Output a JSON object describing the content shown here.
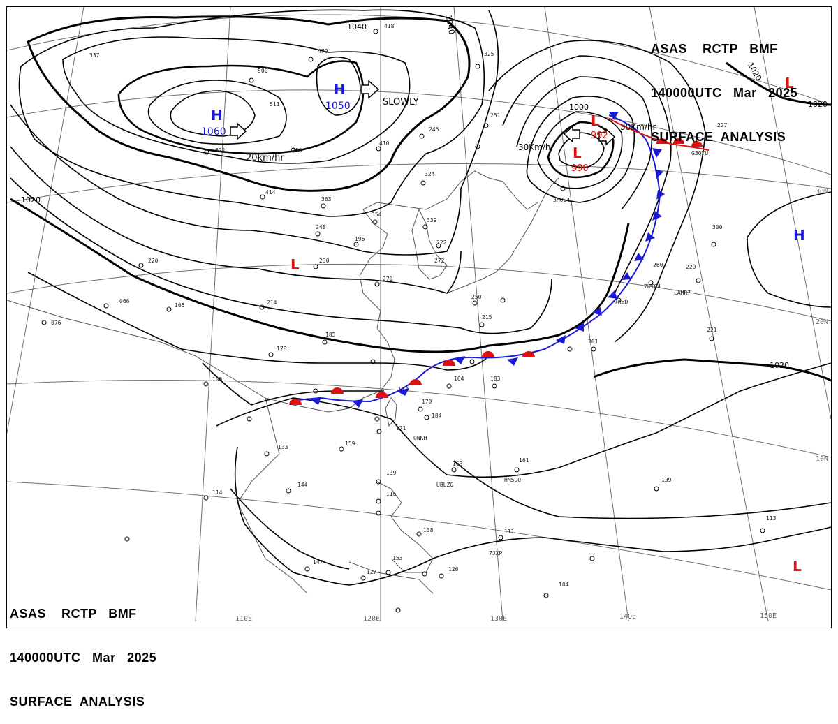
{
  "headers": {
    "top": {
      "line1": "ASAS    RCTP   BMF",
      "line2": "140000UTC   Mar   2025",
      "line3": "SURFACE  ANALYSIS"
    },
    "bottom": {
      "line1": "ASAS    RCTP   BMF",
      "line2": "140000UTC   Mar   2025",
      "line3": "SURFACE  ANALYSIS"
    }
  },
  "colors": {
    "high": "#1a1ad6",
    "low": "#e01010",
    "coast": "#555555",
    "grid": "#6e6e6e",
    "isobar": "#000000"
  },
  "pressure_centers": [
    {
      "kind": "H",
      "value": "1060",
      "motion": "20km/hr"
    },
    {
      "kind": "H",
      "value": "1050",
      "motion": "SLOWLY"
    },
    {
      "kind": "L",
      "value": "990",
      "motion": "30Km/hr"
    },
    {
      "kind": "L",
      "value": "992",
      "motion": "30Km/hr"
    },
    {
      "kind": "L",
      "value": ""
    },
    {
      "kind": "L",
      "value": ""
    },
    {
      "kind": "L",
      "value": ""
    },
    {
      "kind": "H",
      "value": ""
    }
  ],
  "isobar_labels": [
    "1040",
    "1040",
    "1020",
    "1020",
    "1020",
    "1000",
    "1020"
  ],
  "longitude_labels": [
    "110E",
    "120E",
    "130E",
    "140E",
    "150E"
  ],
  "latitude_labels": [
    "30N",
    "20N",
    "10N"
  ],
  "station_labels": [
    "418",
    "479",
    "500",
    "337",
    "511",
    "622",
    "456",
    "410",
    "325",
    "251",
    "245",
    "324",
    "414",
    "363",
    "354",
    "339",
    "248",
    "195",
    "222",
    "272",
    "220",
    "230",
    "270",
    "066",
    "105",
    "214",
    "250",
    "215",
    "185",
    "178",
    "105",
    "172",
    "164",
    "183",
    "201",
    "170",
    "184",
    "171",
    "159",
    "133",
    "144",
    "114",
    "163",
    "161",
    "139",
    "139",
    "116",
    "138",
    "111",
    "113",
    "147",
    "153",
    "127",
    "126",
    "104",
    "076",
    "260",
    "220",
    "221",
    "300",
    "227",
    "ONKH",
    "UBLZG",
    "HM5UQ",
    "7JXP",
    "3HOG4",
    "G3QTU",
    "7KBD",
    "LAHR7",
    "7KT04"
  ]
}
